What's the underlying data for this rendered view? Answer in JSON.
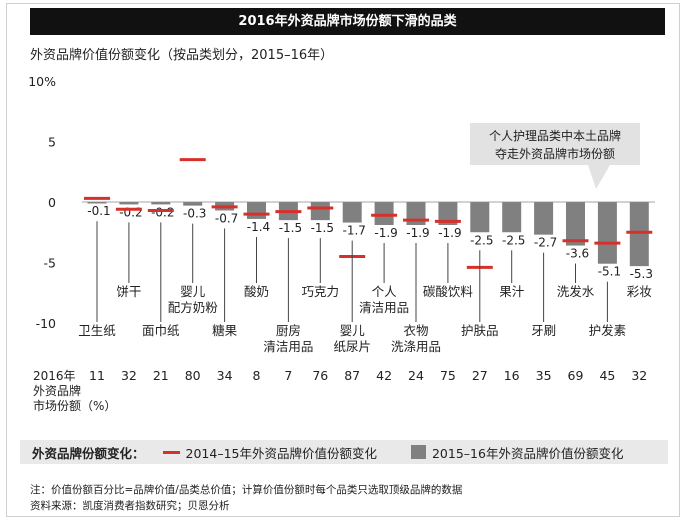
{
  "title": "2016年外资品牌市场份额下滑的品类",
  "subtitle": "外资品牌价值份额变化（按品类划分，2015–16年）",
  "chart_data": {
    "type": "bar",
    "ylim": [
      -10,
      10
    ],
    "yticks": [
      {
        "v": 10,
        "label": "10%"
      },
      {
        "v": 5,
        "label": "5"
      },
      {
        "v": 0,
        "label": "0"
      },
      {
        "v": -5,
        "label": "-5"
      },
      {
        "v": -10,
        "label": "-10"
      }
    ],
    "categories": [
      {
        "name": "卫生纸",
        "lines": [
          "卫生纸"
        ],
        "row": "low",
        "share": "11",
        "v1516": -0.1,
        "v1415": 0.3,
        "label": "-0.1"
      },
      {
        "name": "饼干",
        "lines": [
          "饼干"
        ],
        "row": "high",
        "share": "32",
        "v1516": -0.2,
        "v1415": -0.6,
        "label": "-0.2"
      },
      {
        "name": "面巾纸",
        "lines": [
          "面巾纸"
        ],
        "row": "low",
        "share": "21",
        "v1516": -0.2,
        "v1415": -0.7,
        "label": "-0.2"
      },
      {
        "name": "婴儿配方奶粉",
        "lines": [
          "婴儿",
          "配方奶粉"
        ],
        "row": "high",
        "share": "80",
        "v1516": -0.3,
        "v1415": 3.5,
        "label": "-0.3"
      },
      {
        "name": "糖果",
        "lines": [
          "糖果"
        ],
        "row": "low",
        "share": "34",
        "v1516": -0.7,
        "v1415": -0.4,
        "label": "-0.7"
      },
      {
        "name": "酸奶",
        "lines": [
          "酸奶"
        ],
        "row": "high",
        "share": "8",
        "v1516": -1.4,
        "v1415": -1.0,
        "label": "-1.4"
      },
      {
        "name": "厨房清洁用品",
        "lines": [
          "厨房",
          "清洁用品"
        ],
        "row": "low",
        "share": "7",
        "v1516": -1.5,
        "v1415": -0.8,
        "label": "-1.5"
      },
      {
        "name": "巧克力",
        "lines": [
          "巧克力"
        ],
        "row": "high",
        "share": "76",
        "v1516": -1.5,
        "v1415": -0.5,
        "label": "-1.5"
      },
      {
        "name": "婴儿纸尿片",
        "lines": [
          "婴儿",
          "纸尿片"
        ],
        "row": "low",
        "share": "87",
        "v1516": -1.7,
        "v1415": -4.5,
        "label": "-1.7"
      },
      {
        "name": "个人清洁用品",
        "lines": [
          "个人",
          "清洁用品"
        ],
        "row": "high",
        "share": "42",
        "v1516": -1.9,
        "v1415": -1.1,
        "label": "-1.9"
      },
      {
        "name": "衣物洗涤用品",
        "lines": [
          "衣物",
          "洗涤用品"
        ],
        "row": "low",
        "share": "24",
        "v1516": -1.9,
        "v1415": -1.5,
        "label": "-1.9"
      },
      {
        "name": "碳酸饮料",
        "lines": [
          "碳酸饮料"
        ],
        "row": "high",
        "share": "75",
        "v1516": -1.9,
        "v1415": -1.6,
        "label": "-1.9"
      },
      {
        "name": "护肤品",
        "lines": [
          "护肤品"
        ],
        "row": "low",
        "share": "27",
        "v1516": -2.5,
        "v1415": -5.4,
        "label": "-2.5"
      },
      {
        "name": "果汁",
        "lines": [
          "果汁"
        ],
        "row": "high",
        "share": "16",
        "v1516": -2.5,
        "v1415": null,
        "label": "-2.5"
      },
      {
        "name": "牙刷",
        "lines": [
          "牙刷"
        ],
        "row": "low",
        "share": "35",
        "v1516": -2.7,
        "v1415": null,
        "label": "-2.7"
      },
      {
        "name": "洗发水",
        "lines": [
          "洗发水"
        ],
        "row": "high",
        "share": "69",
        "v1516": -3.6,
        "v1415": -3.2,
        "label": "-3.6"
      },
      {
        "name": "护发素",
        "lines": [
          "护发素"
        ],
        "row": "low",
        "share": "45",
        "v1516": -5.1,
        "v1415": -3.4,
        "label": "-5.1"
      },
      {
        "name": "彩妆",
        "lines": [
          "彩妆"
        ],
        "row": "high",
        "share": "32",
        "v1516": -5.3,
        "v1415": -2.5,
        "label": "-5.3"
      }
    ],
    "share_label_lines": [
      "2016年",
      "外资品牌",
      "市场份额（%）"
    ],
    "callout_lines": [
      "个人护理品类中本土品牌",
      "夺走外资品牌市场份额"
    ],
    "colors": {
      "bar": "#808080",
      "marker": "#d7302a",
      "callout_bg": "#e2e2e2"
    }
  },
  "legend": {
    "title": "外资品牌份额变化：",
    "line_label": "2014–15年外资品牌价值份额变化",
    "bar_label": "2015–16年外资品牌价值份额变化"
  },
  "notes": {
    "note": "注：价值份额百分比=品牌价值/品类总价值；计算价值份额时每个品类只选取顶级品牌的数据",
    "source": "资料来源：凯度消费者指数研究；贝恩分析"
  }
}
